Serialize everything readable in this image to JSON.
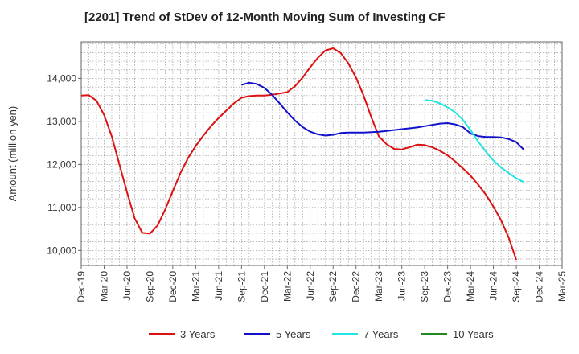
{
  "chart_data": {
    "type": "line",
    "title": "[2201]  Trend of StDev of 12-Month Moving Sum of Investing CF",
    "xlabel": "",
    "ylabel": "Amount (million yen)",
    "ylim": [
      9650,
      14850
    ],
    "yticks": [
      10000,
      11000,
      12000,
      13000,
      14000
    ],
    "ytick_labels": [
      "10,000",
      "11,000",
      "12,000",
      "13,000",
      "14,000"
    ],
    "xticks": [
      "Dec-19",
      "Mar-20",
      "Jun-20",
      "Sep-20",
      "Dec-20",
      "Mar-21",
      "Jun-21",
      "Sep-21",
      "Dec-21",
      "Mar-22",
      "Jun-22",
      "Sep-22",
      "Dec-22",
      "Mar-23",
      "Jun-23",
      "Sep-23",
      "Dec-23",
      "Mar-24",
      "Jun-24",
      "Sep-24",
      "Dec-24",
      "Mar-25"
    ],
    "grid": true,
    "legend_position": "bottom",
    "series": [
      {
        "name": "3 Years",
        "color": "#dd1111",
        "start": "Dec-19",
        "values": [
          13600,
          13610,
          13480,
          13150,
          12650,
          12000,
          11350,
          10750,
          10410,
          10390,
          10580,
          10950,
          11380,
          11800,
          12150,
          12430,
          12670,
          12890,
          13080,
          13250,
          13420,
          13550,
          13590,
          13600,
          13600,
          13620,
          13650,
          13680,
          13820,
          14020,
          14260,
          14480,
          14650,
          14700,
          14590,
          14350,
          14020,
          13600,
          13100,
          12650,
          12470,
          12360,
          12350,
          12400,
          12460,
          12450,
          12400,
          12320,
          12210,
          12070,
          11910,
          11740,
          11530,
          11300,
          11020,
          10700,
          10300,
          9780
        ]
      },
      {
        "name": "5 Years",
        "color": "#1111cc",
        "start": "Sep-21",
        "values": [
          13850,
          13900,
          13870,
          13780,
          13620,
          13420,
          13210,
          13020,
          12870,
          12760,
          12700,
          12670,
          12690,
          12730,
          12740,
          12740,
          12740,
          12750,
          12760,
          12780,
          12800,
          12820,
          12840,
          12860,
          12890,
          12920,
          12950,
          12960,
          12930,
          12870,
          12720,
          12660,
          12640,
          12640,
          12630,
          12590,
          12520,
          12340
        ]
      },
      {
        "name": "7 Years",
        "color": "#22e5e5",
        "start": "Sep-23",
        "values": [
          13500,
          13480,
          13420,
          13330,
          13210,
          13040,
          12800,
          12530,
          12300,
          12090,
          11930,
          11800,
          11680,
          11590
        ]
      },
      {
        "name": "10 Years",
        "color": "#228822",
        "start": "Sep-23",
        "values": []
      }
    ]
  }
}
